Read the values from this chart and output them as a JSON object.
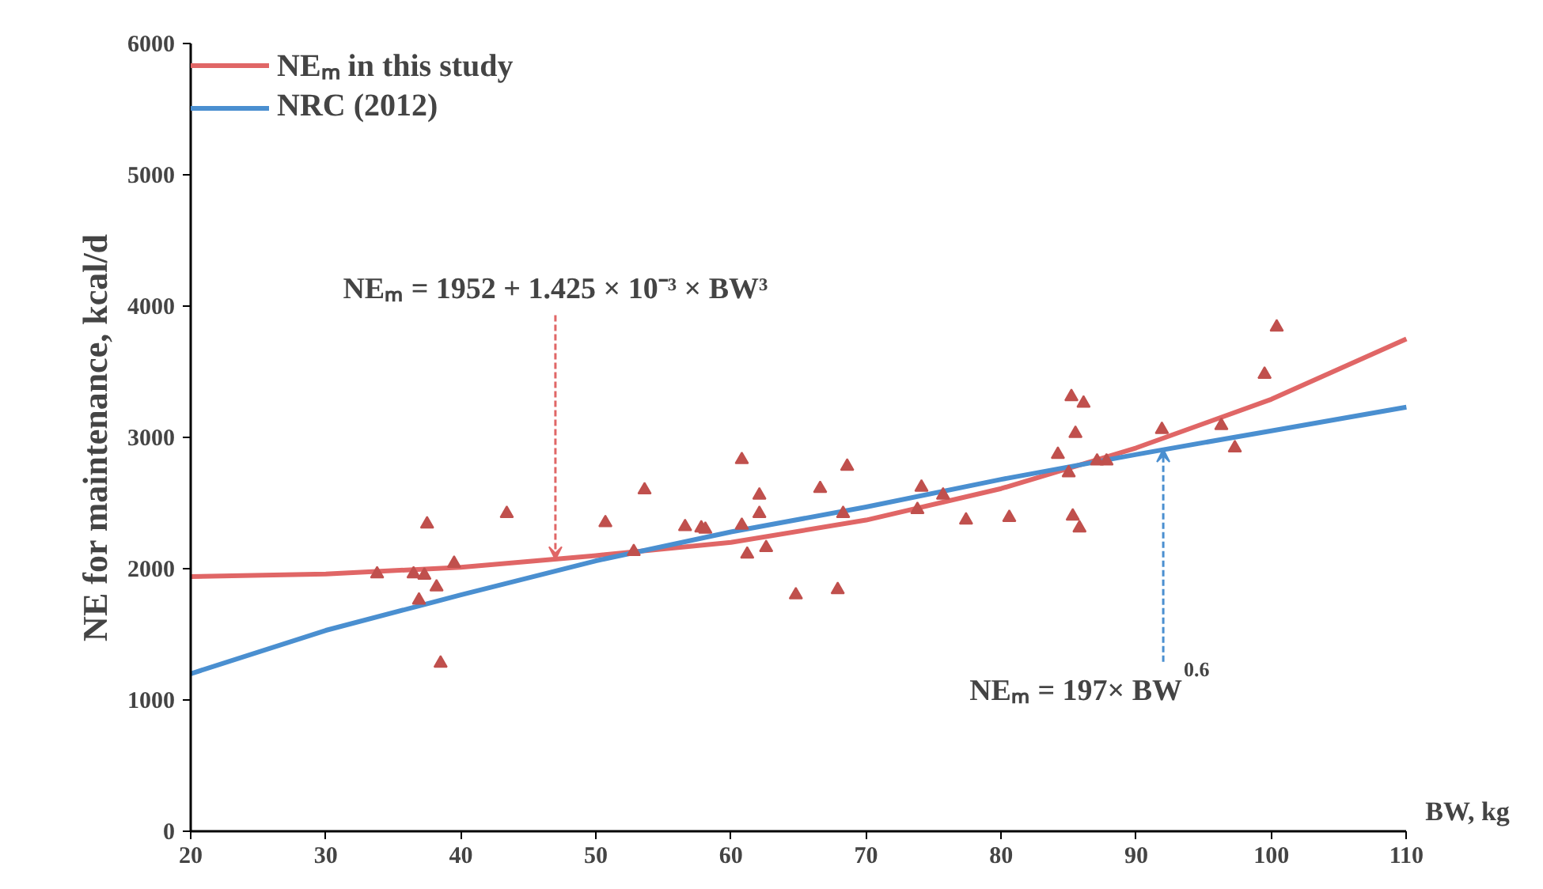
{
  "chart_data": {
    "type": "line",
    "ylabel": "NE for maintenance, kcal/d",
    "xlabel": "BW, kg",
    "xlim": [
      20,
      110
    ],
    "xticks": [
      20,
      30,
      40,
      50,
      60,
      70,
      80,
      90,
      100,
      110
    ],
    "ylim": [
      0,
      6000
    ],
    "yticks": [
      0,
      1000,
      2000,
      3000,
      4000,
      5000,
      6000
    ],
    "grid": false,
    "legend": "top left",
    "line_style": "solid",
    "series": [
      {
        "name": "NEₘ in this study",
        "color": "#e06666",
        "x": [
          20,
          30,
          40,
          50,
          60,
          70,
          80,
          90,
          100,
          110
        ],
        "values": [
          1940,
          1960,
          2010,
          2100,
          2200,
          2370,
          2610,
          2920,
          3290,
          3750
        ]
      },
      {
        "name": "NRC (2012)",
        "color": "#4a8fd0",
        "x": [
          20,
          30,
          40,
          50,
          60,
          70,
          80,
          90,
          100,
          110
        ],
        "values": [
          1200,
          1530,
          1800,
          2060,
          2280,
          2470,
          2680,
          2870,
          3050,
          3230
        ]
      },
      {
        "type": "scatter",
        "marker": "triangle",
        "color": "#c0504d",
        "x": [
          33.8,
          36.5,
          37.3,
          37.5,
          36.9,
          38.2,
          38.5,
          39.5,
          43.4,
          50.7,
          52.8,
          53.6,
          56.6,
          57.8,
          58.1,
          60.8,
          60.8,
          61.2,
          62.1,
          62.1,
          62.6,
          64.8,
          66.6,
          67.9,
          68.3,
          68.6,
          73.8,
          74.1,
          75.7,
          77.4,
          80.6,
          84.2,
          85.0,
          85.2,
          85.3,
          85.5,
          85.8,
          86.1,
          87.1,
          87.8,
          91.9,
          96.3,
          97.3,
          99.5,
          100.4
        ],
        "values": [
          1960,
          1960,
          1950,
          2340,
          1760,
          1860,
          1280,
          2040,
          2420,
          2350,
          2130,
          2600,
          2320,
          2310,
          2300,
          2830,
          2330,
          2110,
          2420,
          2560,
          2160,
          1800,
          2610,
          1840,
          2420,
          2780,
          2450,
          2620,
          2560,
          2370,
          2390,
          2870,
          2730,
          3310,
          2400,
          3030,
          2310,
          3260,
          2820,
          2820,
          3060,
          3090,
          2920,
          3480,
          3840
        ]
      }
    ],
    "annotations": [
      {
        "text": "NEₘ = 1952 + 1.425 × 10⁻³ × BW³",
        "x": 47,
        "y": 2070
      },
      {
        "text": "NEₘ = 197× BW$^{0.6}$",
        "x": 92,
        "y": 2910
      }
    ]
  }
}
